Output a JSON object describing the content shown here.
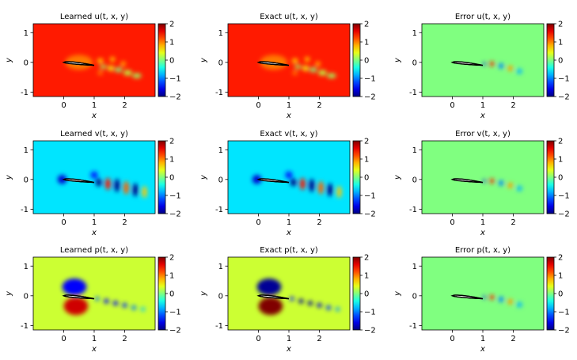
{
  "chart_data": {
    "type": "heatmap",
    "description_rows": [
      "u",
      "v",
      "p"
    ],
    "columns": [
      "Learned",
      "Exact",
      "Error"
    ],
    "x_ticks": [
      0,
      1,
      2
    ],
    "y_ticks": [
      -1,
      0,
      1
    ],
    "xlim": [
      -1.0,
      3.0
    ],
    "ylim": [
      -1.15,
      1.3
    ],
    "xlabel": "x",
    "ylabel": "y",
    "colorbar": {
      "min": -2,
      "max": 2,
      "ticks": [
        2,
        1,
        0,
        -1,
        -2
      ],
      "colormap": "jet"
    },
    "airfoil": {
      "leading_edge_x": 0.0,
      "trailing_edge_x": 1.0,
      "angle_deg": -6
    },
    "panels": [
      {
        "row": 0,
        "col": 0,
        "title": "Learned u(t, x, y)",
        "field": "u",
        "kind": "learned"
      },
      {
        "row": 0,
        "col": 1,
        "title": "Exact u(t, x, y)",
        "field": "u",
        "kind": "exact"
      },
      {
        "row": 0,
        "col": 2,
        "title": "Error u(t, x, y)",
        "field": "u",
        "kind": "error"
      },
      {
        "row": 1,
        "col": 0,
        "title": "Learned v(t, x, y)",
        "field": "v",
        "kind": "learned"
      },
      {
        "row": 1,
        "col": 1,
        "title": "Exact v(t, x, y)",
        "field": "v",
        "kind": "exact"
      },
      {
        "row": 1,
        "col": 2,
        "title": "Error v(t, x, y)",
        "field": "v",
        "kind": "error"
      },
      {
        "row": 2,
        "col": 0,
        "title": "Learned p(t, x, y)",
        "field": "p",
        "kind": "learned"
      },
      {
        "row": 2,
        "col": 1,
        "title": "Exact p(t, x, y)",
        "field": "p",
        "kind": "exact"
      },
      {
        "row": 2,
        "col": 2,
        "title": "Error p(t, x, y)",
        "field": "p",
        "kind": "error"
      }
    ],
    "field_baselines": {
      "u": 1.4,
      "v": -0.6,
      "p": 0.3,
      "error": 0.0
    }
  }
}
